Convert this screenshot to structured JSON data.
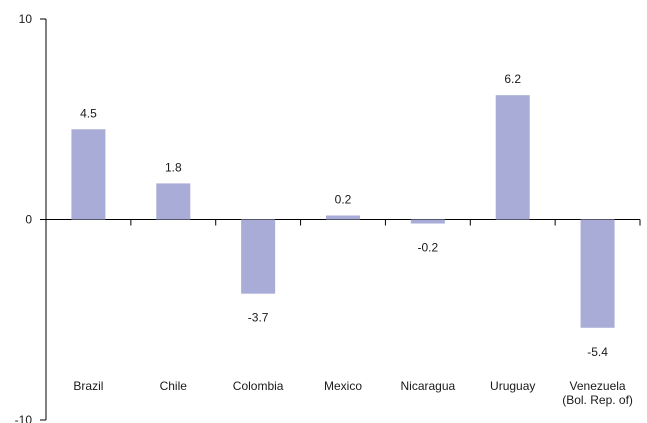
{
  "chart_data": {
    "type": "bar",
    "categories": [
      [
        "Brazil"
      ],
      [
        "Chile"
      ],
      [
        "Colombia"
      ],
      [
        "Mexico"
      ],
      [
        "Nicaragua"
      ],
      [
        "Uruguay"
      ],
      [
        "Venezuela",
        "(Bol. Rep. of)"
      ]
    ],
    "values": [
      4.5,
      1.8,
      -3.7,
      0.2,
      -0.2,
      6.2,
      -5.4
    ],
    "value_labels": [
      "4.5",
      "1.8",
      "-3.7",
      "0.2",
      "-0.2",
      "6.2",
      "-5.4"
    ],
    "y_ticks": [
      "10",
      "0",
      "-10"
    ],
    "ylim": [
      -10,
      10
    ],
    "bar_color": "#a8acd6",
    "grid": false,
    "title": "",
    "xlabel": "",
    "ylabel": ""
  }
}
